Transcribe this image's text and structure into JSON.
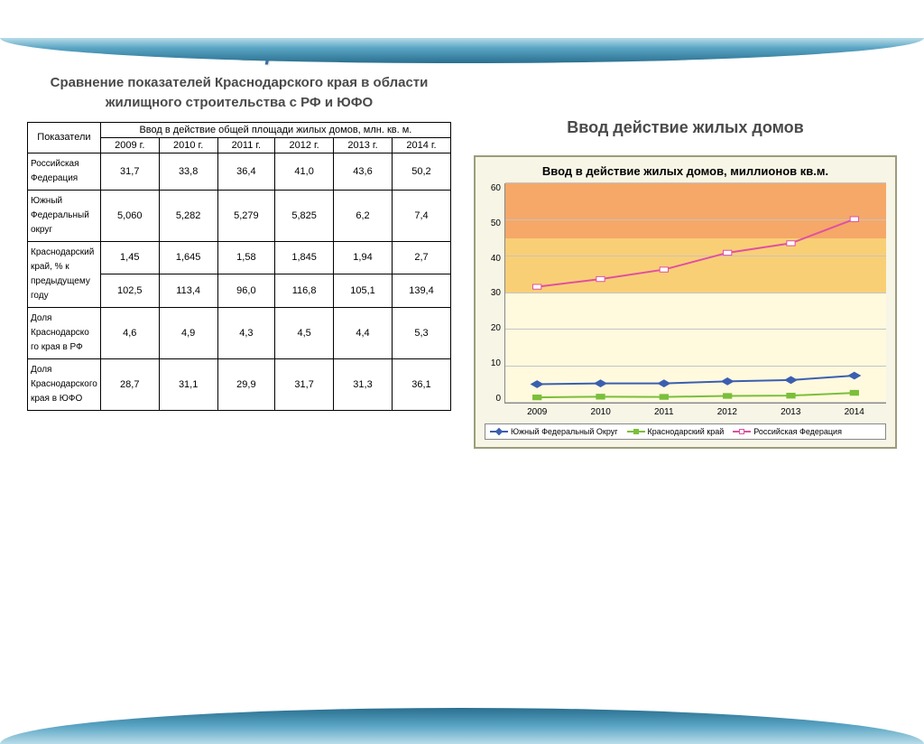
{
  "title": "Оценка объемов вводимого жилья",
  "left_subtitle": "Сравнение показателей Краснодарского края в области жилищного строительства с РФ и ЮФО",
  "right_subtitle": "Ввод действие жилых домов",
  "table": {
    "header_indicator": "Показатели",
    "header_group": "Ввод в действие общей площади жилых домов, млн. кв. м.",
    "years": [
      "2009 г.",
      "2010 г.",
      "2011 г.",
      "2012 г.",
      "2013 г.",
      "2014 г."
    ],
    "rows": [
      {
        "label": "Российская Федерация",
        "values": [
          "31,7",
          "33,8",
          "36,4",
          "41,0",
          "43,6",
          "50,2"
        ]
      },
      {
        "label": "Южный Федеральный округ",
        "values": [
          "5,060",
          "5,282",
          "5,279",
          "5,825",
          "6,2",
          "7,4"
        ]
      },
      {
        "label_rows": 2,
        "label": "Краснодарский край, % к предыдущему году",
        "values_a": [
          "1,45",
          "1,645",
          "1,58",
          "1,845",
          "1,94",
          "2,7"
        ],
        "values_b": [
          "102,5",
          "113,4",
          "96,0",
          "116,8",
          "105,1",
          "139,4"
        ]
      },
      {
        "label": "Доля Краснодарско го края в РФ",
        "values": [
          "4,6",
          "4,9",
          "4,3",
          "4,5",
          "4,4",
          "5,3"
        ]
      },
      {
        "label": "Доля Краснодарского края в ЮФО",
        "values": [
          "28,7",
          "31,1",
          "29,9",
          "31,7",
          "31,3",
          "36,1"
        ]
      }
    ]
  },
  "chart": {
    "type": "line",
    "title": "Ввод в действие жилых домов, миллионов кв.м.",
    "background_color": "#f7f5e6",
    "border_color": "#9c9c7a",
    "ylim": [
      0,
      60
    ],
    "ytick_step": 10,
    "yticks": [
      "60",
      "50",
      "40",
      "30",
      "20",
      "10",
      "0"
    ],
    "x_categories": [
      "2009",
      "2010",
      "2011",
      "2012",
      "2013",
      "2014"
    ],
    "bands": [
      {
        "from": 0,
        "to": 30,
        "color": "#fff9de"
      },
      {
        "from": 30,
        "to": 45,
        "color": "#f9cf76"
      },
      {
        "from": 45,
        "to": 60,
        "color": "#f5a868"
      }
    ],
    "grid_color": "#c4c4c4",
    "series": [
      {
        "name": "Южный Федеральный Округ",
        "color": "#3b5fb0",
        "marker": "diamond",
        "marker_fill": "#3b5fb0",
        "values": [
          5.06,
          5.28,
          5.28,
          5.83,
          6.2,
          7.4
        ]
      },
      {
        "name": "Краснодарский край",
        "color": "#7bbf3a",
        "marker": "square",
        "marker_fill": "#7bbf3a",
        "values": [
          1.45,
          1.65,
          1.58,
          1.85,
          1.94,
          2.7
        ]
      },
      {
        "name": "Российская Федерация",
        "color": "#e050a0",
        "marker": "square",
        "marker_fill": "#ffffff",
        "values": [
          31.7,
          33.8,
          36.4,
          41.0,
          43.6,
          50.2
        ]
      }
    ],
    "legend_labels": [
      "Южный Федеральный Округ",
      "Краснодарский край",
      "Российская Федерация"
    ],
    "title_fontsize": 13,
    "axis_fontsize": 10,
    "line_width": 2
  }
}
